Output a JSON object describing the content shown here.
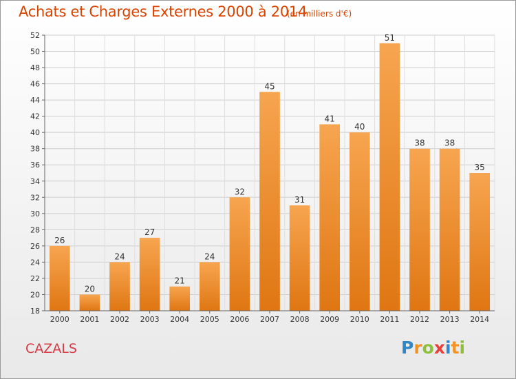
{
  "header": {
    "title": "Achats et Charges Externes 2000 à 2014",
    "unit": "(en milliers d'€)"
  },
  "footer": {
    "commune": "CAZALS",
    "brand_letters": [
      {
        "char": "P",
        "color": "#2f86c8"
      },
      {
        "char": "r",
        "color": "#f29323"
      },
      {
        "char": "o",
        "color": "#8dbf3d"
      },
      {
        "char": "x",
        "color": "#e8403a"
      },
      {
        "char": "i",
        "color": "#2f86c8"
      },
      {
        "char": "t",
        "color": "#f29323"
      },
      {
        "char": "i",
        "color": "#8dbf3d"
      }
    ]
  },
  "colors": {
    "bar_light": "#f7a550",
    "bar_dark": "#df7612",
    "title": "#d94400",
    "commune": "#d63c47"
  },
  "chart_data": {
    "type": "bar",
    "title": "Achats et Charges Externes 2000 à 2014",
    "subtitle": "(en milliers d'€)",
    "categories": [
      "2000",
      "2001",
      "2002",
      "2003",
      "2004",
      "2005",
      "2006",
      "2007",
      "2008",
      "2009",
      "2010",
      "2011",
      "2012",
      "2013",
      "2014"
    ],
    "values": [
      26,
      20,
      24,
      27,
      21,
      24,
      32,
      45,
      31,
      41,
      40,
      51,
      38,
      38,
      35
    ],
    "ylim": [
      18,
      52
    ],
    "yticks": [
      18,
      20,
      22,
      24,
      26,
      28,
      30,
      32,
      34,
      36,
      38,
      40,
      42,
      44,
      46,
      48,
      50,
      52
    ],
    "grid": true,
    "legend": "none"
  }
}
